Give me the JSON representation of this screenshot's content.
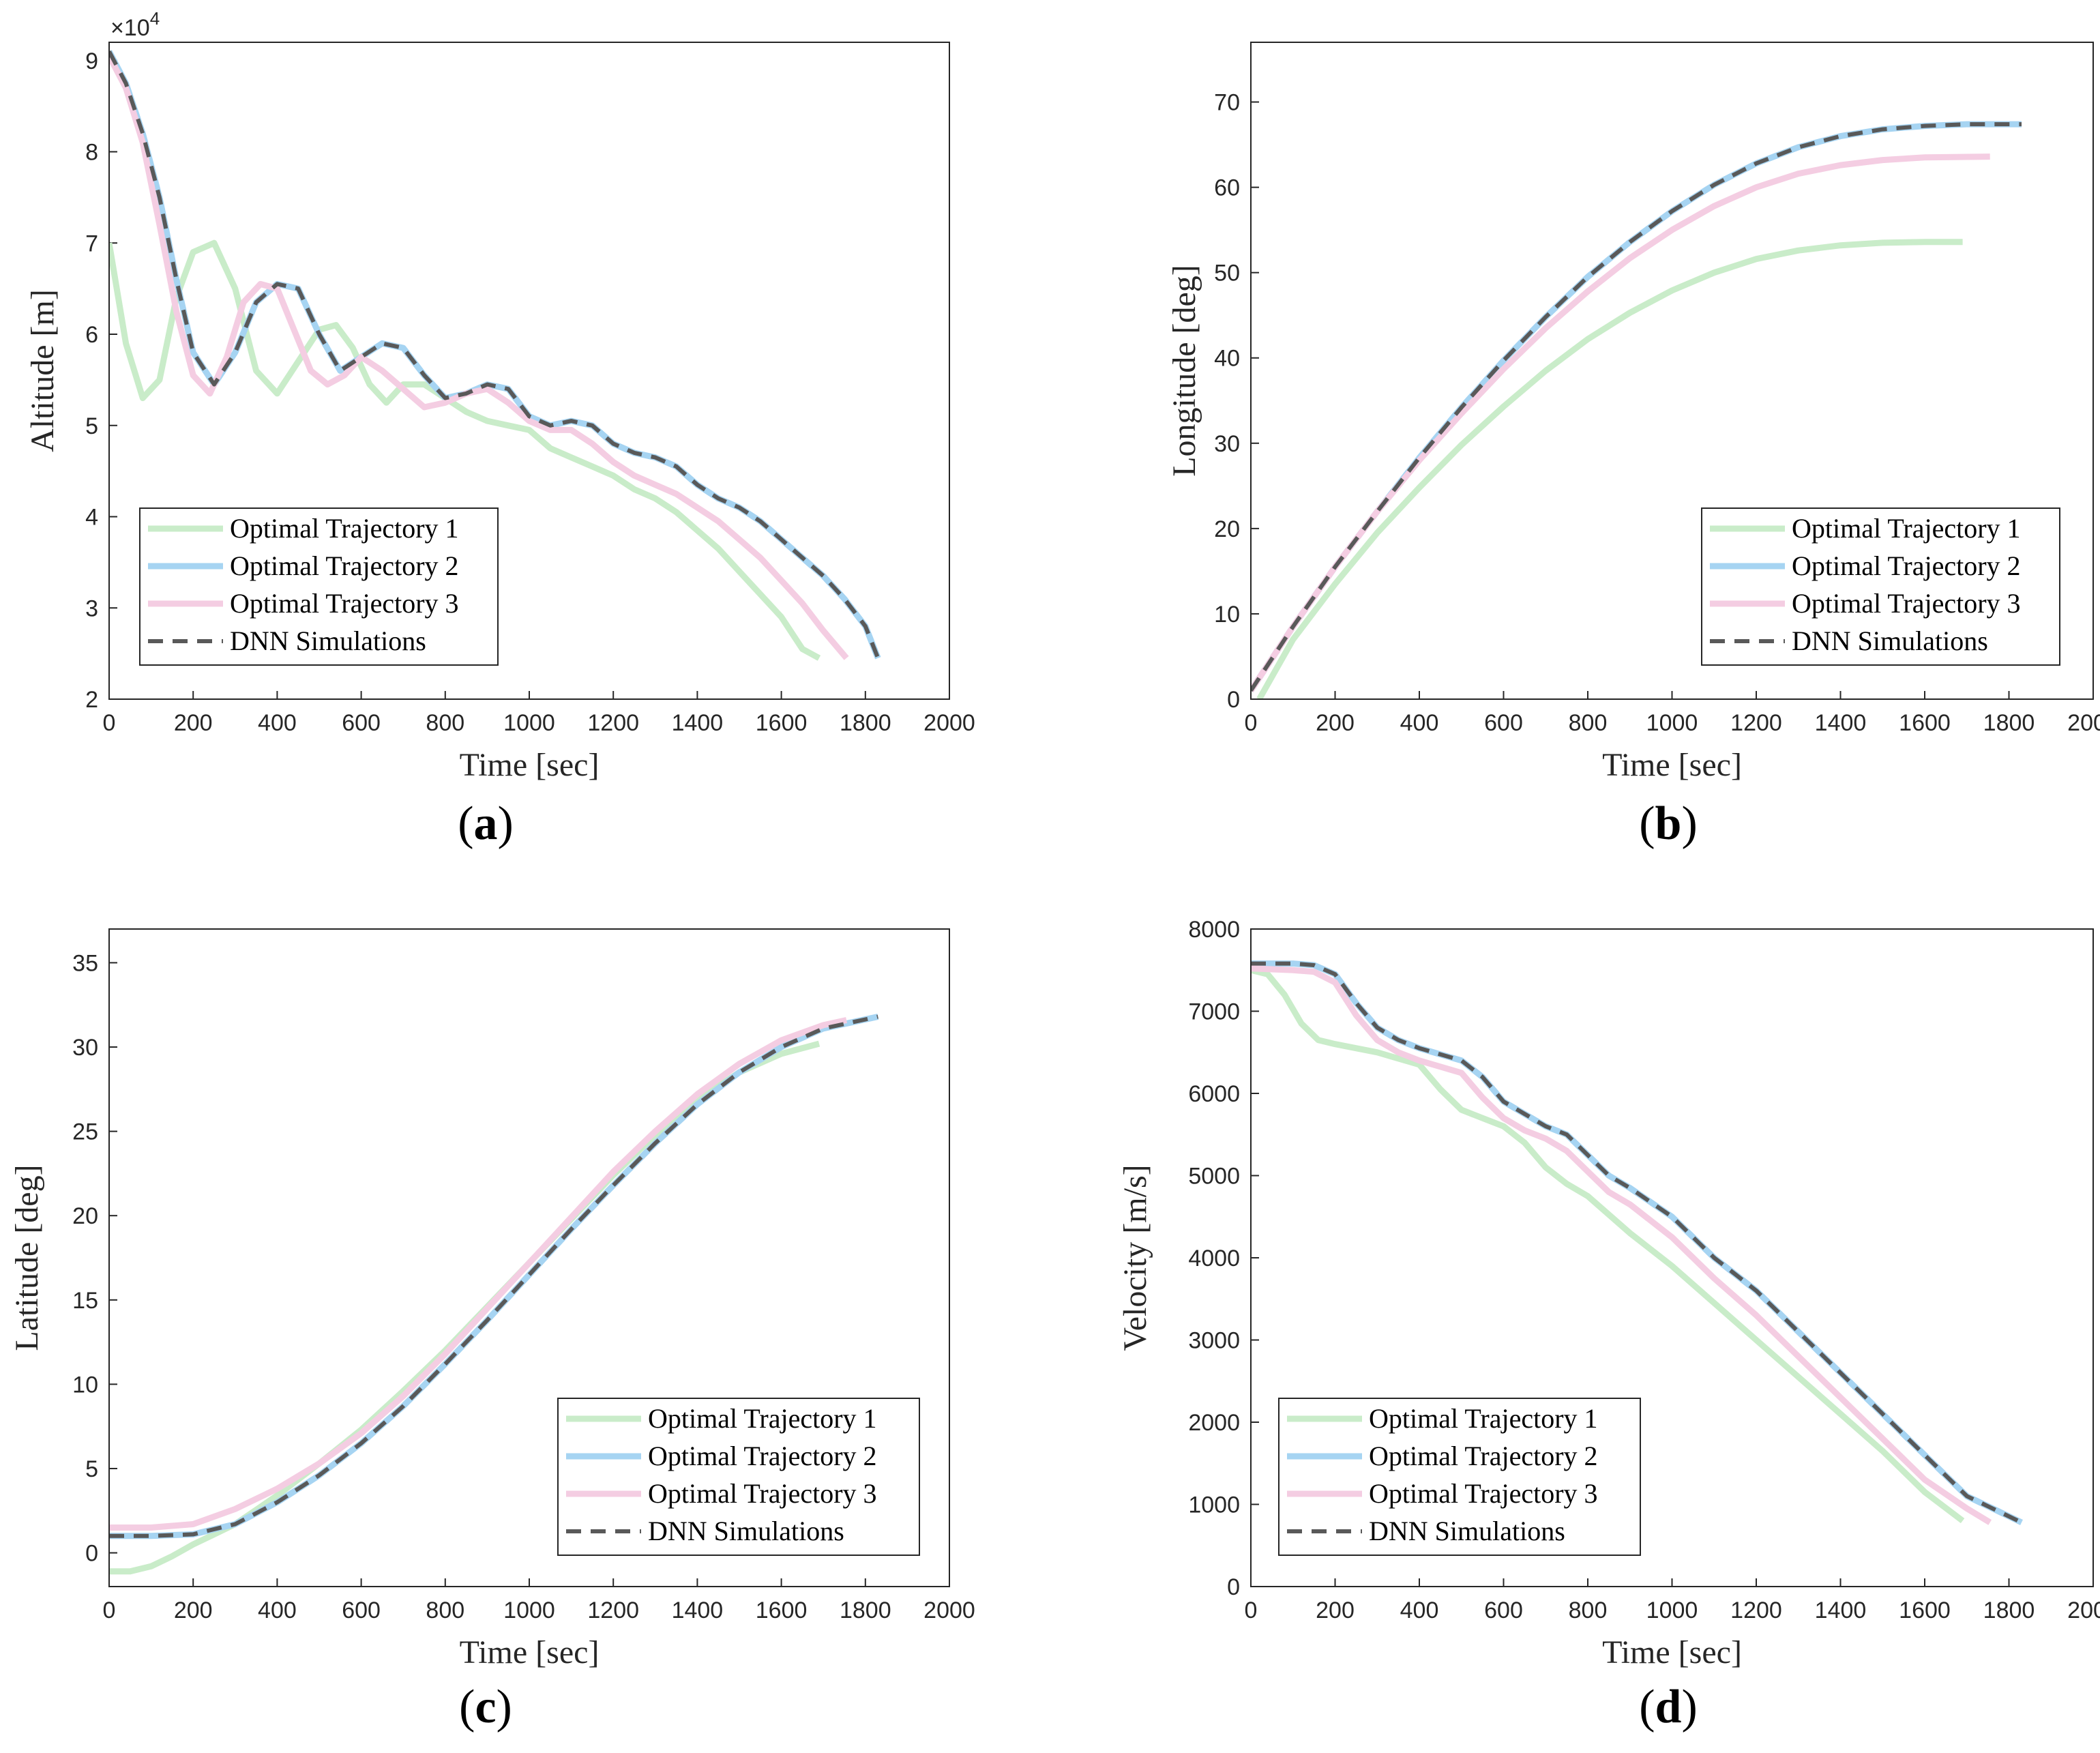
{
  "chart_data": [
    {
      "id": "a",
      "type": "line",
      "caption_letter": "a",
      "xlabel": "Time [sec]",
      "ylabel": "Altitude [m]",
      "exponent_label": "×10",
      "exponent_power": "4",
      "xlim": [
        0,
        2000
      ],
      "ylim": [
        2,
        9.2
      ],
      "xticks": [
        0,
        200,
        400,
        600,
        800,
        1000,
        1200,
        1400,
        1600,
        1800,
        2000
      ],
      "yticks": [
        2,
        3,
        4,
        5,
        6,
        7,
        8,
        9
      ],
      "legend_position": "lower-left",
      "series": [
        {
          "name": "Optimal Trajectory 1",
          "color": "#c9ecc9",
          "style": "solid",
          "x": [
            0,
            40,
            80,
            120,
            160,
            200,
            250,
            300,
            350,
            400,
            450,
            500,
            540,
            580,
            620,
            660,
            700,
            750,
            800,
            850,
            900,
            950,
            1000,
            1050,
            1100,
            1150,
            1200,
            1250,
            1300,
            1350,
            1400,
            1450,
            1500,
            1550,
            1600,
            1650,
            1690
          ],
          "y": [
            7.0,
            5.9,
            5.3,
            5.5,
            6.4,
            6.9,
            7.0,
            6.5,
            5.6,
            5.35,
            5.7,
            6.05,
            6.1,
            5.85,
            5.45,
            5.25,
            5.45,
            5.45,
            5.3,
            5.15,
            5.05,
            5.0,
            4.95,
            4.75,
            4.65,
            4.55,
            4.45,
            4.3,
            4.2,
            4.05,
            3.85,
            3.65,
            3.4,
            3.15,
            2.9,
            2.55,
            2.45
          ]
        },
        {
          "name": "Optimal Trajectory 2",
          "color": "#a6d4f2",
          "style": "solid",
          "x": [
            0,
            40,
            80,
            120,
            160,
            200,
            250,
            300,
            350,
            400,
            450,
            500,
            550,
            600,
            650,
            700,
            750,
            800,
            850,
            900,
            950,
            1000,
            1050,
            1100,
            1150,
            1200,
            1250,
            1300,
            1350,
            1400,
            1450,
            1500,
            1550,
            1600,
            1650,
            1700,
            1750,
            1800,
            1830
          ],
          "y": [
            9.1,
            8.75,
            8.2,
            7.5,
            6.6,
            5.8,
            5.45,
            5.8,
            6.35,
            6.55,
            6.5,
            6.0,
            5.6,
            5.75,
            5.9,
            5.85,
            5.55,
            5.3,
            5.35,
            5.45,
            5.4,
            5.1,
            5.0,
            5.05,
            5.0,
            4.8,
            4.7,
            4.65,
            4.55,
            4.35,
            4.2,
            4.1,
            3.95,
            3.75,
            3.55,
            3.35,
            3.1,
            2.8,
            2.45
          ]
        },
        {
          "name": "Optimal Trajectory 3",
          "color": "#f4cde2",
          "style": "solid",
          "x": [
            0,
            40,
            80,
            120,
            160,
            200,
            240,
            280,
            320,
            360,
            400,
            440,
            480,
            520,
            560,
            600,
            650,
            700,
            750,
            800,
            850,
            900,
            950,
            1000,
            1050,
            1100,
            1150,
            1200,
            1250,
            1300,
            1350,
            1400,
            1450,
            1500,
            1550,
            1600,
            1650,
            1700,
            1755
          ],
          "y": [
            9.05,
            8.7,
            8.1,
            7.2,
            6.25,
            5.55,
            5.35,
            5.75,
            6.35,
            6.55,
            6.5,
            6.05,
            5.6,
            5.45,
            5.55,
            5.75,
            5.6,
            5.4,
            5.2,
            5.25,
            5.35,
            5.4,
            5.25,
            5.05,
            4.95,
            4.95,
            4.8,
            4.6,
            4.45,
            4.35,
            4.25,
            4.1,
            3.95,
            3.75,
            3.55,
            3.3,
            3.05,
            2.75,
            2.45
          ]
        },
        {
          "name": "DNN Simulations",
          "color": "#595959",
          "style": "dashed",
          "x": [
            0,
            40,
            80,
            120,
            160,
            200,
            250,
            300,
            350,
            400,
            450,
            500,
            550,
            600,
            650,
            700,
            750,
            800,
            850,
            900,
            950,
            1000,
            1050,
            1100,
            1150,
            1200,
            1250,
            1300,
            1350,
            1400,
            1450,
            1500,
            1550,
            1600,
            1650,
            1700,
            1750,
            1800,
            1830
          ],
          "y": [
            9.1,
            8.75,
            8.2,
            7.5,
            6.6,
            5.8,
            5.45,
            5.8,
            6.35,
            6.55,
            6.5,
            6.0,
            5.6,
            5.75,
            5.9,
            5.85,
            5.55,
            5.3,
            5.35,
            5.45,
            5.4,
            5.1,
            5.0,
            5.05,
            5.0,
            4.8,
            4.7,
            4.65,
            4.55,
            4.35,
            4.2,
            4.1,
            3.95,
            3.75,
            3.55,
            3.35,
            3.1,
            2.8,
            2.45
          ]
        }
      ]
    },
    {
      "id": "b",
      "type": "line",
      "caption_letter": "b",
      "xlabel": "Time [sec]",
      "ylabel": "Longitude [deg]",
      "xlim": [
        0,
        2000
      ],
      "ylim": [
        0,
        77
      ],
      "xticks": [
        0,
        200,
        400,
        600,
        800,
        1000,
        1200,
        1400,
        1600,
        1800,
        2000
      ],
      "yticks": [
        0,
        10,
        20,
        30,
        40,
        50,
        60,
        70
      ],
      "legend_position": "lower-right",
      "series": [
        {
          "name": "Optimal Trajectory 1",
          "color": "#c9ecc9",
          "style": "solid",
          "x": [
            20,
            100,
            200,
            300,
            400,
            500,
            600,
            700,
            800,
            900,
            1000,
            1100,
            1200,
            1300,
            1400,
            1500,
            1600,
            1690
          ],
          "y": [
            0,
            7,
            13.5,
            19.5,
            24.8,
            29.8,
            34.3,
            38.5,
            42.2,
            45.3,
            47.9,
            50.0,
            51.6,
            52.6,
            53.2,
            53.5,
            53.6,
            53.6
          ]
        },
        {
          "name": "Optimal Trajectory 2",
          "color": "#a6d4f2",
          "style": "solid",
          "x": [
            0,
            100,
            200,
            300,
            400,
            500,
            600,
            700,
            800,
            900,
            1000,
            1100,
            1200,
            1300,
            1400,
            1500,
            1600,
            1700,
            1830
          ],
          "y": [
            1,
            8.5,
            15.5,
            22,
            28.3,
            34.2,
            39.7,
            44.8,
            49.5,
            53.6,
            57.2,
            60.3,
            62.8,
            64.7,
            66.0,
            66.8,
            67.2,
            67.4,
            67.4
          ]
        },
        {
          "name": "Optimal Trajectory 3",
          "color": "#f4cde2",
          "style": "solid",
          "x": [
            0,
            100,
            200,
            300,
            400,
            500,
            600,
            700,
            800,
            900,
            1000,
            1100,
            1200,
            1300,
            1400,
            1500,
            1600,
            1755
          ],
          "y": [
            1,
            8.5,
            15.5,
            22,
            28,
            33.5,
            38.7,
            43.5,
            47.8,
            51.7,
            55.0,
            57.8,
            60.0,
            61.6,
            62.6,
            63.2,
            63.5,
            63.6
          ]
        },
        {
          "name": "DNN Simulations",
          "color": "#595959",
          "style": "dashed",
          "x": [
            0,
            100,
            200,
            300,
            400,
            500,
            600,
            700,
            800,
            900,
            1000,
            1100,
            1200,
            1300,
            1400,
            1500,
            1600,
            1700,
            1830
          ],
          "y": [
            1,
            8.5,
            15.5,
            22,
            28.3,
            34.2,
            39.7,
            44.8,
            49.5,
            53.6,
            57.2,
            60.3,
            62.8,
            64.7,
            66.0,
            66.8,
            67.2,
            67.4,
            67.4
          ]
        }
      ]
    },
    {
      "id": "c",
      "type": "line",
      "caption_letter": "c",
      "xlabel": "Time [sec]",
      "ylabel": "Latitude [deg]",
      "xlim": [
        0,
        2000
      ],
      "ylim": [
        -2,
        37
      ],
      "xticks": [
        0,
        200,
        400,
        600,
        800,
        1000,
        1200,
        1400,
        1600,
        1800,
        2000
      ],
      "yticks": [
        0,
        5,
        10,
        15,
        20,
        25,
        30,
        35
      ],
      "legend_position": "lower-right",
      "series": [
        {
          "name": "Optimal Trajectory 1",
          "color": "#c9ecc9",
          "style": "solid",
          "x": [
            0,
            50,
            100,
            150,
            200,
            250,
            300,
            400,
            500,
            600,
            700,
            800,
            900,
            1000,
            1100,
            1200,
            1300,
            1400,
            1500,
            1600,
            1690
          ],
          "y": [
            -1.1,
            -1.1,
            -0.8,
            -0.2,
            0.5,
            1.1,
            1.7,
            3.4,
            5.3,
            7.3,
            9.6,
            12.0,
            14.6,
            17.2,
            19.8,
            22.4,
            24.8,
            26.9,
            28.5,
            29.6,
            30.2
          ]
        },
        {
          "name": "Optimal Trajectory 2",
          "color": "#a6d4f2",
          "style": "solid",
          "x": [
            0,
            100,
            200,
            300,
            400,
            500,
            600,
            700,
            800,
            900,
            1000,
            1100,
            1200,
            1300,
            1400,
            1500,
            1600,
            1700,
            1830
          ],
          "y": [
            1.0,
            1.0,
            1.1,
            1.7,
            3.0,
            4.6,
            6.5,
            8.7,
            11.2,
            13.8,
            16.5,
            19.2,
            21.8,
            24.3,
            26.6,
            28.5,
            30.0,
            31.1,
            31.8
          ]
        },
        {
          "name": "Optimal Trajectory 3",
          "color": "#f4cde2",
          "style": "solid",
          "x": [
            0,
            100,
            200,
            300,
            400,
            500,
            600,
            700,
            800,
            900,
            1000,
            1100,
            1200,
            1300,
            1400,
            1500,
            1600,
            1700,
            1755
          ],
          "y": [
            1.5,
            1.5,
            1.7,
            2.6,
            3.8,
            5.3,
            7.1,
            9.3,
            11.8,
            14.5,
            17.2,
            19.9,
            22.6,
            25.0,
            27.2,
            29.0,
            30.4,
            31.3,
            31.6
          ]
        },
        {
          "name": "DNN Simulations",
          "color": "#595959",
          "style": "dashed",
          "x": [
            0,
            100,
            200,
            300,
            400,
            500,
            600,
            700,
            800,
            900,
            1000,
            1100,
            1200,
            1300,
            1400,
            1500,
            1600,
            1700,
            1830
          ],
          "y": [
            1.0,
            1.0,
            1.1,
            1.7,
            3.0,
            4.6,
            6.5,
            8.7,
            11.2,
            13.8,
            16.5,
            19.2,
            21.8,
            24.3,
            26.6,
            28.5,
            30.0,
            31.1,
            31.8
          ]
        }
      ]
    },
    {
      "id": "d",
      "type": "line",
      "caption_letter": "d",
      "xlabel": "Time [sec]",
      "ylabel": "Velocity [m/s]",
      "xlim": [
        0,
        2000
      ],
      "ylim": [
        0,
        8000
      ],
      "xticks": [
        0,
        200,
        400,
        600,
        800,
        1000,
        1200,
        1400,
        1600,
        1800,
        2000
      ],
      "yticks": [
        0,
        1000,
        2000,
        3000,
        4000,
        5000,
        6000,
        7000,
        8000
      ],
      "legend_position": "lower-left",
      "series": [
        {
          "name": "Optimal Trajectory 1",
          "color": "#c9ecc9",
          "style": "solid",
          "x": [
            0,
            40,
            80,
            120,
            160,
            200,
            300,
            400,
            450,
            500,
            550,
            600,
            650,
            700,
            750,
            800,
            900,
            1000,
            1100,
            1200,
            1300,
            1400,
            1500,
            1600,
            1690
          ],
          "y": [
            7500,
            7450,
            7200,
            6850,
            6650,
            6600,
            6500,
            6350,
            6050,
            5800,
            5700,
            5600,
            5400,
            5100,
            4900,
            4750,
            4300,
            3900,
            3450,
            3000,
            2550,
            2100,
            1650,
            1150,
            800
          ]
        },
        {
          "name": "Optimal Trajectory 2",
          "color": "#a6d4f2",
          "style": "solid",
          "x": [
            0,
            100,
            150,
            200,
            250,
            300,
            350,
            400,
            500,
            550,
            600,
            650,
            700,
            750,
            800,
            850,
            900,
            1000,
            1100,
            1200,
            1300,
            1400,
            1500,
            1600,
            1700,
            1830
          ],
          "y": [
            7580,
            7580,
            7560,
            7450,
            7100,
            6800,
            6650,
            6550,
            6400,
            6200,
            5900,
            5750,
            5600,
            5500,
            5250,
            5000,
            4850,
            4500,
            4000,
            3600,
            3100,
            2600,
            2100,
            1600,
            1100,
            780
          ]
        },
        {
          "name": "Optimal Trajectory 3",
          "color": "#f4cde2",
          "style": "solid",
          "x": [
            0,
            100,
            150,
            200,
            250,
            300,
            350,
            400,
            500,
            550,
            600,
            650,
            700,
            750,
            800,
            850,
            900,
            1000,
            1100,
            1200,
            1300,
            1400,
            1500,
            1600,
            1700,
            1755
          ],
          "y": [
            7520,
            7500,
            7480,
            7350,
            6950,
            6650,
            6500,
            6400,
            6250,
            5950,
            5700,
            5550,
            5450,
            5300,
            5050,
            4800,
            4650,
            4250,
            3750,
            3300,
            2800,
            2300,
            1800,
            1300,
            950,
            780
          ]
        },
        {
          "name": "DNN Simulations",
          "color": "#595959",
          "style": "dashed",
          "x": [
            0,
            100,
            150,
            200,
            250,
            300,
            350,
            400,
            500,
            550,
            600,
            650,
            700,
            750,
            800,
            850,
            900,
            1000,
            1100,
            1200,
            1300,
            1400,
            1500,
            1600,
            1700,
            1830
          ],
          "y": [
            7580,
            7580,
            7560,
            7450,
            7100,
            6800,
            6650,
            6550,
            6400,
            6200,
            5900,
            5750,
            5600,
            5500,
            5250,
            5000,
            4850,
            4500,
            4000,
            3600,
            3100,
            2600,
            2100,
            1600,
            1100,
            780
          ]
        }
      ]
    }
  ]
}
